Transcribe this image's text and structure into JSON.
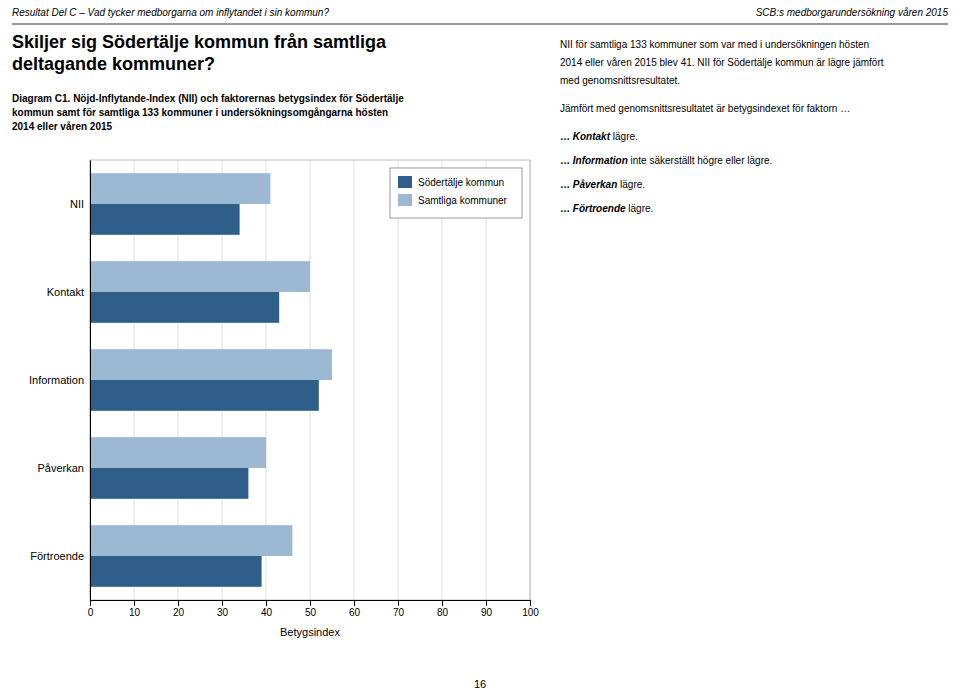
{
  "chart_data": {
    "type": "bar",
    "orientation": "horizontal",
    "title": "Skiljer sig Södertälje kommun från samtliga\ndeltagande kommuner?",
    "subtitle": "Diagram C1. Nöjd-Inflytande-Index (NII) och faktorernas betygsindex för Södertälje\nkommun samt för samtliga 133 kommuner i undersökningsomgångarna hösten\n2014 eller våren 2015",
    "categories": [
      "NII",
      "Kontakt",
      "Information",
      "Påverkan",
      "Förtroende"
    ],
    "series": [
      {
        "name": "Södertälje kommun",
        "color": "#2E5F8A",
        "values": [
          34,
          43,
          52,
          36,
          39
        ]
      },
      {
        "name": "Samtliga kommuner",
        "color": "#9DB8D2",
        "values": [
          41,
          50,
          55,
          40,
          46
        ]
      }
    ],
    "xlabel": "Betygsindex",
    "xlim": [
      0,
      100
    ],
    "xticks": [
      0,
      10,
      20,
      30,
      40,
      50,
      60,
      70,
      80,
      90,
      100
    ],
    "grid": true,
    "legend": "upper right",
    "annotations": [
      "Resultat Del C – Vad tycker medborgarna om inflytandet i sin kommun?",
      "SCB:s medborgarundersökning våren 2015",
      "NII för samtliga 133 kommuner som var med i undersökningen hösten",
      "2014 eller våren 2015 blev 41. NII för Södertälje kommun är lägre jämfört",
      "med genomsnittsresultatet.",
      "Jämfört med genomsnittsresultatet är betygsindexet för faktorn …",
      "… Kontakt lägre.",
      "… Information inte säkerställt högre eller lägre.",
      "… Påverkan lägre.",
      "… Förtroende lägre.",
      "16"
    ]
  }
}
